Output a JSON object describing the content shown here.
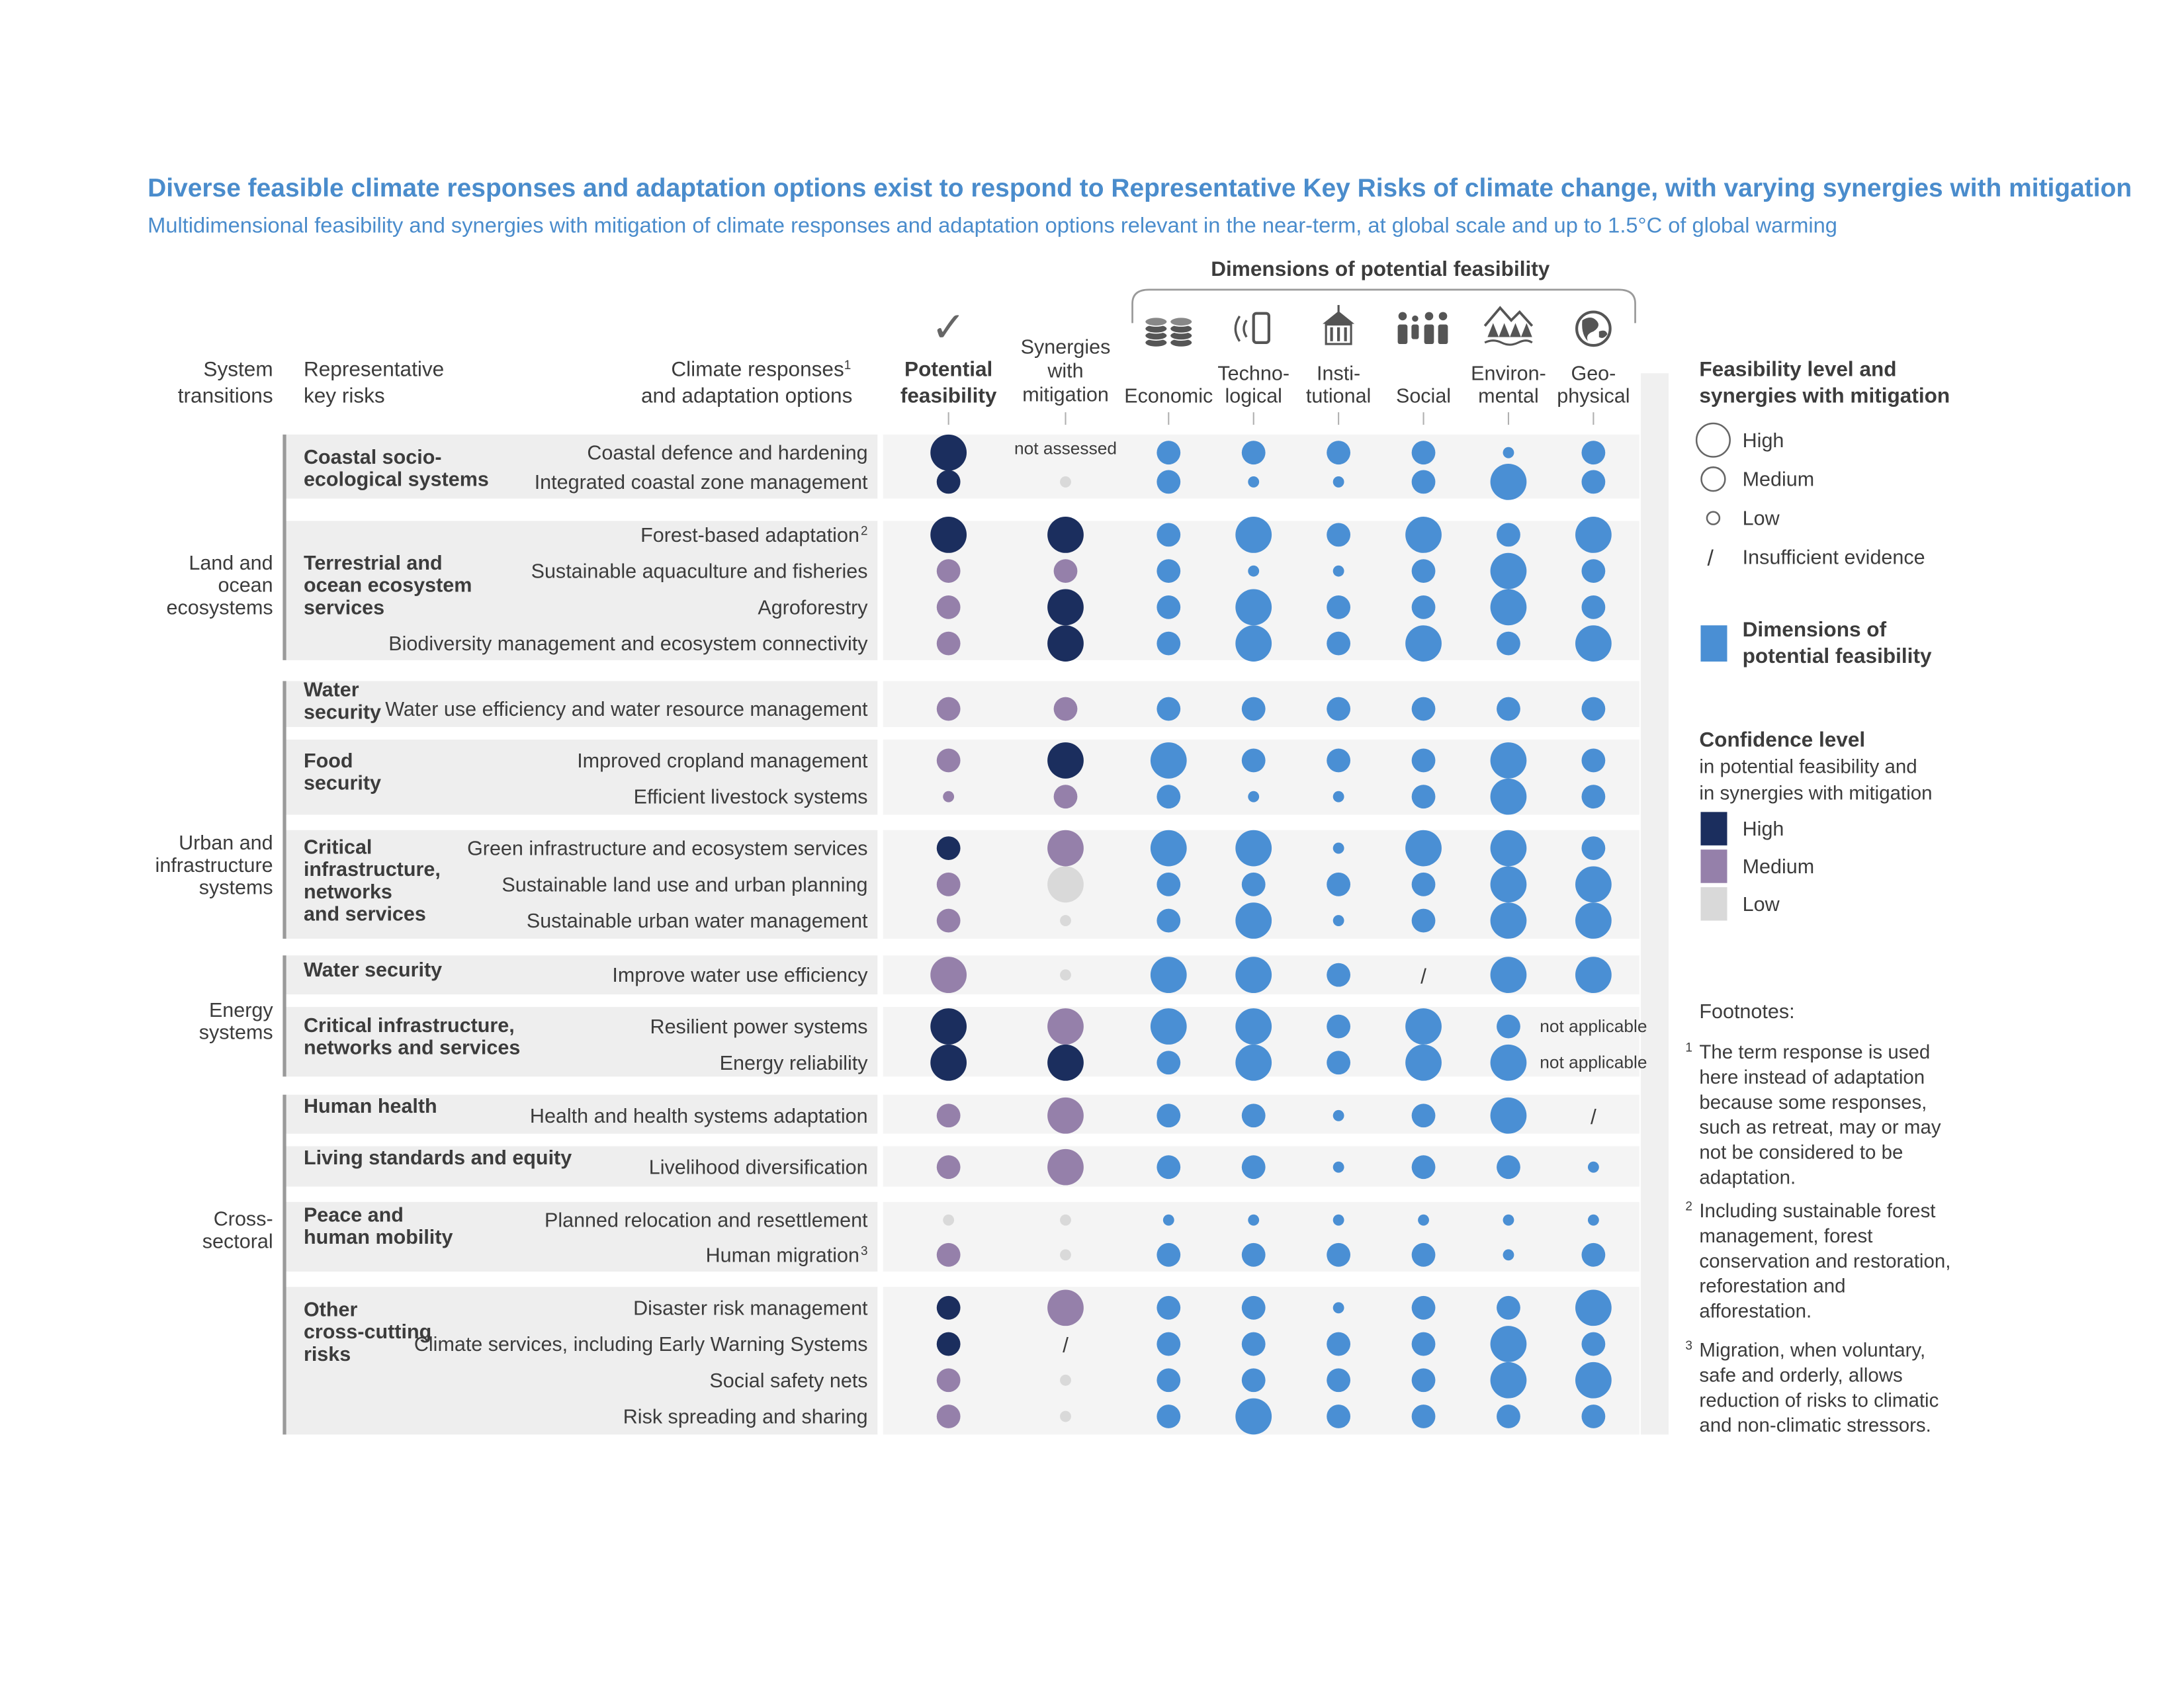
{
  "colors": {
    "title": "#4a8ccc",
    "text": "#3c3c3c",
    "high": "#1b2e5e",
    "medium": "#9580aa",
    "low": "#d9d9d9",
    "dimension": "#4a8fd4",
    "band": "#eeeeee"
  },
  "chart_data": {
    "type": "table",
    "title": "Diverse feasible climate responses and adaptation options exist to respond to Representative Key Risks of climate change, with varying synergies with mitigation",
    "subtitle": "Multidimensional feasibility and synergies with mitigation of climate responses and adaptation options relevant in the near-term, at global scale and up to 1.5°C of global warming",
    "dimensions_header": "Dimensions of potential feasibility",
    "headers": {
      "system": [
        "System",
        "transitions"
      ],
      "risk": [
        "Representative",
        "key risks"
      ],
      "response": [
        "Climate responses",
        "and adaptation options"
      ],
      "response_sup": "1",
      "feasibility": [
        "Potential",
        "feasibility"
      ],
      "synergies": [
        "Synergies",
        "with",
        "mitigation"
      ],
      "checkmark": "✓"
    },
    "dimension_columns": [
      {
        "label": [
          "Economic"
        ],
        "icon": "coins-icon"
      },
      {
        "label": [
          "Techno-",
          "logical"
        ],
        "icon": "phone-icon"
      },
      {
        "label": [
          "Insti-",
          "tutional"
        ],
        "icon": "building-icon"
      },
      {
        "label": [
          "Social"
        ],
        "icon": "people-icon"
      },
      {
        "label": [
          "Environ-",
          "mental"
        ],
        "icon": "forest-icon"
      },
      {
        "label": [
          "Geo-",
          "physical"
        ],
        "icon": "globe-icon"
      }
    ],
    "systems": [
      {
        "label": [
          "Land and",
          "ocean",
          "ecosystems"
        ]
      },
      {
        "label": [
          "Urban and",
          "infrastructure",
          "systems"
        ]
      },
      {
        "label": [
          "Energy",
          "systems"
        ]
      },
      {
        "label": [
          "Cross-",
          "sectoral"
        ]
      }
    ],
    "groups": [
      {
        "risk": [
          "Coastal socio-",
          "ecological systems"
        ],
        "rows": [
          {
            "option": "Coastal defence and hardening",
            "sup": "",
            "feas": [
              "H",
              "H"
            ],
            "syn": "not assessed",
            "dims": [
              "M",
              "M",
              "M",
              "M",
              "L",
              "M"
            ]
          },
          {
            "option": "Integrated coastal zone management",
            "sup": "",
            "feas": [
              "M",
              "H"
            ],
            "syn": [
              "L",
              "L"
            ],
            "dims": [
              "M",
              "L",
              "L",
              "M",
              "H",
              "M"
            ]
          }
        ]
      },
      {
        "risk": [
          "Terrestrial and",
          "ocean ecosystem",
          "services"
        ],
        "rows": [
          {
            "option": "Forest-based adaptation",
            "sup": "2",
            "feas": [
              "H",
              "H"
            ],
            "syn": [
              "H",
              "H"
            ],
            "dims": [
              "M",
              "H",
              "M",
              "H",
              "M",
              "H"
            ]
          },
          {
            "option": "Sustainable aquaculture and fisheries",
            "sup": "",
            "feas": [
              "M",
              "M"
            ],
            "syn": [
              "M",
              "M"
            ],
            "dims": [
              "M",
              "L",
              "L",
              "M",
              "H",
              "M"
            ]
          },
          {
            "option": "Agroforestry",
            "sup": "",
            "feas": [
              "M",
              "M"
            ],
            "syn": [
              "H",
              "H"
            ],
            "dims": [
              "M",
              "H",
              "M",
              "M",
              "H",
              "M"
            ]
          },
          {
            "option": "Biodiversity management and ecosystem connectivity",
            "sup": "",
            "feas": [
              "M",
              "M"
            ],
            "syn": [
              "H",
              "H"
            ],
            "dims": [
              "M",
              "H",
              "M",
              "H",
              "M",
              "H"
            ]
          }
        ]
      },
      {
        "risk": [
          "Water",
          "security"
        ],
        "rows": [
          {
            "option": "Water use efficiency and water resource management",
            "sup": "",
            "feas": [
              "M",
              "M"
            ],
            "syn": [
              "M",
              "M"
            ],
            "dims": [
              "M",
              "M",
              "M",
              "M",
              "M",
              "M"
            ]
          }
        ]
      },
      {
        "risk": [
          "Food",
          "security"
        ],
        "rows": [
          {
            "option": "Improved cropland management",
            "sup": "",
            "feas": [
              "M",
              "M"
            ],
            "syn": [
              "H",
              "H"
            ],
            "dims": [
              "H",
              "M",
              "M",
              "M",
              "H",
              "M"
            ]
          },
          {
            "option": "Efficient livestock systems",
            "sup": "",
            "feas": [
              "L",
              "M"
            ],
            "syn": [
              "M",
              "M"
            ],
            "dims": [
              "M",
              "L",
              "L",
              "M",
              "H",
              "M"
            ]
          }
        ]
      },
      {
        "risk": [
          "Critical",
          "infrastructure,",
          "networks",
          "and services"
        ],
        "rows": [
          {
            "option": "Green infrastructure and ecosystem services",
            "sup": "",
            "feas": [
              "M",
              "H"
            ],
            "syn": [
              "H",
              "M"
            ],
            "dims": [
              "H",
              "H",
              "L",
              "H",
              "H",
              "M"
            ]
          },
          {
            "option": "Sustainable land use and urban planning",
            "sup": "",
            "feas": [
              "M",
              "M"
            ],
            "syn": [
              "H",
              "L"
            ],
            "dims": [
              "M",
              "M",
              "M",
              "M",
              "H",
              "H"
            ]
          },
          {
            "option": "Sustainable urban water management",
            "sup": "",
            "feas": [
              "M",
              "M"
            ],
            "syn": [
              "L",
              "L"
            ],
            "dims": [
              "M",
              "H",
              "L",
              "M",
              "H",
              "H"
            ]
          }
        ]
      },
      {
        "risk": [
          "Water security"
        ],
        "rows": [
          {
            "option": "Improve water use efficiency",
            "sup": "",
            "feas": [
              "H",
              "M"
            ],
            "syn": [
              "L",
              "L"
            ],
            "dims": [
              "H",
              "H",
              "M",
              "/",
              "H",
              "H"
            ]
          }
        ]
      },
      {
        "risk": [
          "Critical infrastructure,",
          "networks and services"
        ],
        "rows": [
          {
            "option": "Resilient power systems",
            "sup": "",
            "feas": [
              "H",
              "H"
            ],
            "syn": [
              "H",
              "M"
            ],
            "dims": [
              "H",
              "H",
              "M",
              "H",
              "M",
              "NA"
            ]
          },
          {
            "option": "Energy reliability",
            "sup": "",
            "feas": [
              "H",
              "H"
            ],
            "syn": [
              "H",
              "H"
            ],
            "dims": [
              "M",
              "H",
              "M",
              "H",
              "H",
              "NA"
            ]
          }
        ]
      },
      {
        "risk": [
          "Human health"
        ],
        "rows": [
          {
            "option": "Health and health systems adaptation",
            "sup": "",
            "feas": [
              "M",
              "M"
            ],
            "syn": [
              "H",
              "M"
            ],
            "dims": [
              "M",
              "M",
              "L",
              "M",
              "H",
              "/"
            ]
          }
        ]
      },
      {
        "risk": [
          "Living standards and equity"
        ],
        "rows": [
          {
            "option": "Livelihood diversification",
            "sup": "",
            "feas": [
              "M",
              "M"
            ],
            "syn": [
              "H",
              "M"
            ],
            "dims": [
              "M",
              "M",
              "L",
              "M",
              "M",
              "L"
            ]
          }
        ]
      },
      {
        "risk": [
          "Peace and",
          "human mobility"
        ],
        "rows": [
          {
            "option": "Planned relocation and resettlement",
            "sup": "",
            "feas": [
              "L",
              "L"
            ],
            "syn": [
              "L",
              "L"
            ],
            "dims": [
              "L",
              "L",
              "L",
              "L",
              "L",
              "L"
            ]
          },
          {
            "option": "Human migration",
            "sup": "3",
            "feas": [
              "M",
              "M"
            ],
            "syn": [
              "L",
              "L"
            ],
            "dims": [
              "M",
              "M",
              "M",
              "M",
              "L",
              "M"
            ]
          }
        ]
      },
      {
        "risk": [
          "Other",
          "cross-cutting",
          "risks"
        ],
        "rows": [
          {
            "option": "Disaster risk management",
            "sup": "",
            "feas": [
              "M",
              "H"
            ],
            "syn": [
              "H",
              "M"
            ],
            "dims": [
              "M",
              "M",
              "L",
              "M",
              "M",
              "H"
            ]
          },
          {
            "option": "Climate services, including Early Warning Systems",
            "sup": "",
            "feas": [
              "M",
              "H"
            ],
            "syn": "/",
            "dims": [
              "M",
              "M",
              "M",
              "M",
              "H",
              "M"
            ]
          },
          {
            "option": "Social safety nets",
            "sup": "",
            "feas": [
              "M",
              "M"
            ],
            "syn": [
              "L",
              "L"
            ],
            "dims": [
              "M",
              "M",
              "M",
              "M",
              "H",
              "H"
            ]
          },
          {
            "option": "Risk spreading and sharing",
            "sup": "",
            "feas": [
              "M",
              "M"
            ],
            "syn": [
              "L",
              "L"
            ],
            "dims": [
              "M",
              "H",
              "M",
              "M",
              "M",
              "M"
            ]
          }
        ]
      }
    ],
    "not_applicable_label": "not applicable",
    "legend": {
      "feasibility_title": [
        "Feasibility level and",
        "synergies with mitigation"
      ],
      "levels": [
        "High",
        "Medium",
        "Low",
        "Insufficient evidence"
      ],
      "dimensions_label": [
        "Dimensions of",
        "potential feasibility"
      ],
      "confidence_title": "Confidence level",
      "confidence_sub": [
        "in potential feasibility and",
        "in synergies with mitigation"
      ],
      "confidence_levels": [
        "High",
        "Medium",
        "Low"
      ]
    },
    "footnotes": {
      "title": "Footnotes:",
      "notes": [
        {
          "num": "1",
          "lines": [
            "The term response is used",
            "here instead of adaptation",
            "because some responses,",
            "such as retreat, may or may",
            "not be considered to be",
            "adaptation."
          ]
        },
        {
          "num": "2",
          "lines": [
            "Including sustainable forest",
            "management, forest",
            "conservation and restoration,",
            "reforestation and",
            "afforestation."
          ]
        },
        {
          "num": "3",
          "lines": [
            "Migration, when voluntary,",
            "safe and orderly, allows",
            "reduction of risks to climatic",
            "and non-climatic stressors."
          ]
        }
      ]
    }
  }
}
